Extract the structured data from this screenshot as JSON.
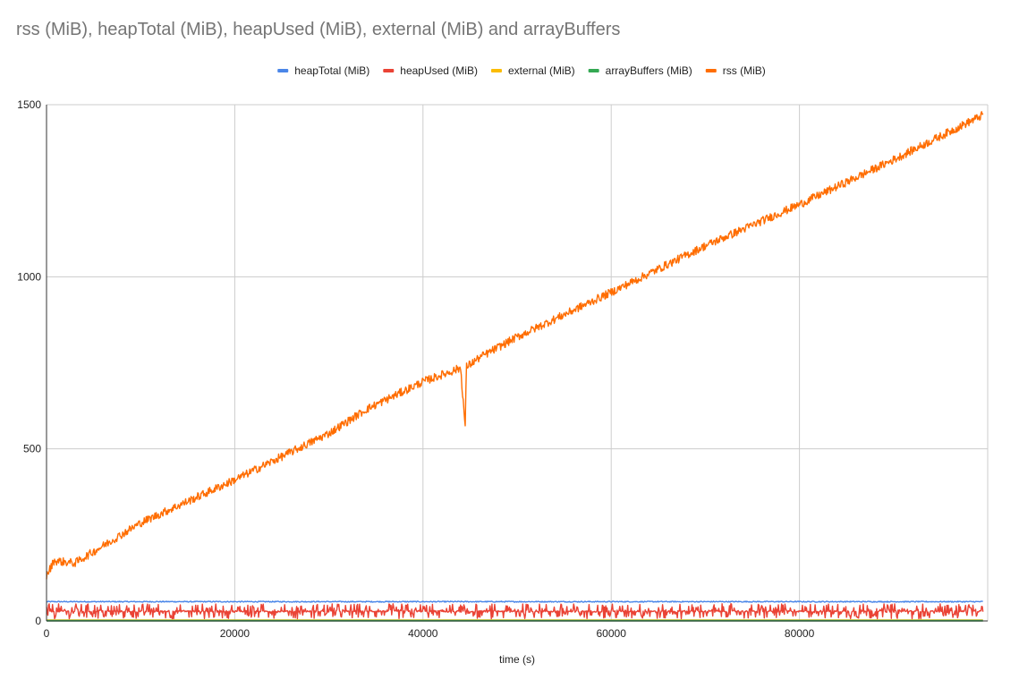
{
  "chart_data": {
    "type": "line",
    "title": "rss (MiB), heapTotal (MiB), heapUsed (MiB), external (MiB) and arrayBuffers",
    "xlabel": "time (s)",
    "ylabel": "",
    "xlim": [
      0,
      100000
    ],
    "ylim": [
      0,
      1500
    ],
    "x_ticks": [
      "0",
      "20000",
      "40000",
      "60000",
      "80000"
    ],
    "y_ticks": [
      "0",
      "500",
      "1000",
      "1500"
    ],
    "grid": true,
    "legend_position": "top",
    "series": [
      {
        "name": "heapTotal (MiB)",
        "color": "#4a86e8",
        "x": [
          0,
          10000,
          20000,
          30000,
          40000,
          50000,
          60000,
          70000,
          80000,
          90000,
          99500
        ],
        "y": [
          56,
          56,
          56,
          56,
          56,
          56,
          56,
          56,
          56,
          56,
          56
        ],
        "noise": 1.5
      },
      {
        "name": "heapUsed (MiB)",
        "color": "#ea4335",
        "x": [
          0,
          10000,
          20000,
          30000,
          40000,
          50000,
          60000,
          70000,
          80000,
          90000,
          99500
        ],
        "y": [
          28,
          28,
          28,
          28,
          28,
          28,
          28,
          28,
          28,
          28,
          28
        ],
        "noise": 22
      },
      {
        "name": "external (MiB)",
        "color": "#fbbc04",
        "x": [
          0,
          99500
        ],
        "y": [
          2,
          2
        ],
        "noise": 0
      },
      {
        "name": "arrayBuffers (MiB)",
        "color": "#34a853",
        "x": [
          0,
          99500
        ],
        "y": [
          0.5,
          0.5
        ],
        "noise": 0
      },
      {
        "name": "rss (MiB)",
        "color": "#ff6d01",
        "x": [
          0,
          800,
          3000,
          10000,
          20000,
          30000,
          34000,
          40000,
          44000,
          44500,
          44600,
          46000,
          50000,
          60000,
          70000,
          80000,
          90000,
          99500
        ],
        "y": [
          130,
          175,
          168,
          285,
          410,
          545,
          615,
          695,
          735,
          560,
          738,
          765,
          825,
          955,
          1090,
          1210,
          1340,
          1470
        ],
        "noise": 12
      }
    ]
  }
}
